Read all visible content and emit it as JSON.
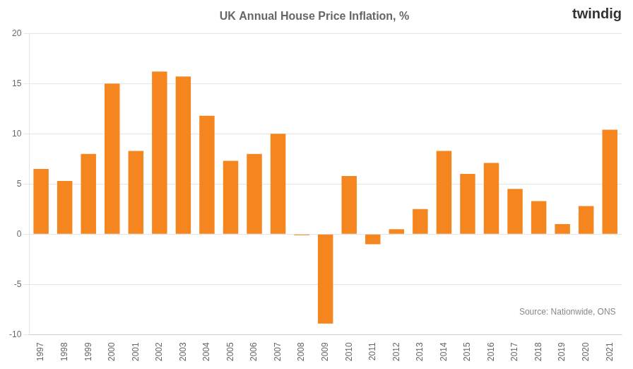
{
  "chart_data": {
    "type": "bar",
    "title": "UK Annual House Price Inflation, %",
    "categories": [
      "1997",
      "1998",
      "1999",
      "2000",
      "2001",
      "2002",
      "2003",
      "2004",
      "2005",
      "2006",
      "2007",
      "2008",
      "2009",
      "2010",
      "2011",
      "2012",
      "2013",
      "2014",
      "2015",
      "2016",
      "2017",
      "2018",
      "2019",
      "2020",
      "2021"
    ],
    "values": [
      6.5,
      5.3,
      8.0,
      15.0,
      8.3,
      16.2,
      15.7,
      11.8,
      7.3,
      8.0,
      10.0,
      -0.1,
      -8.9,
      5.8,
      -1.0,
      0.5,
      2.5,
      8.3,
      6.0,
      7.1,
      4.5,
      3.3,
      1.0,
      2.8,
      10.4
    ],
    "color": "#F5861F",
    "ylim": [
      -10,
      20
    ],
    "yticks": [
      -10,
      -5,
      0,
      5,
      10,
      15,
      20
    ],
    "grid": true,
    "annotations": [
      "Source: Nationwide, ONS",
      "twindig"
    ]
  }
}
